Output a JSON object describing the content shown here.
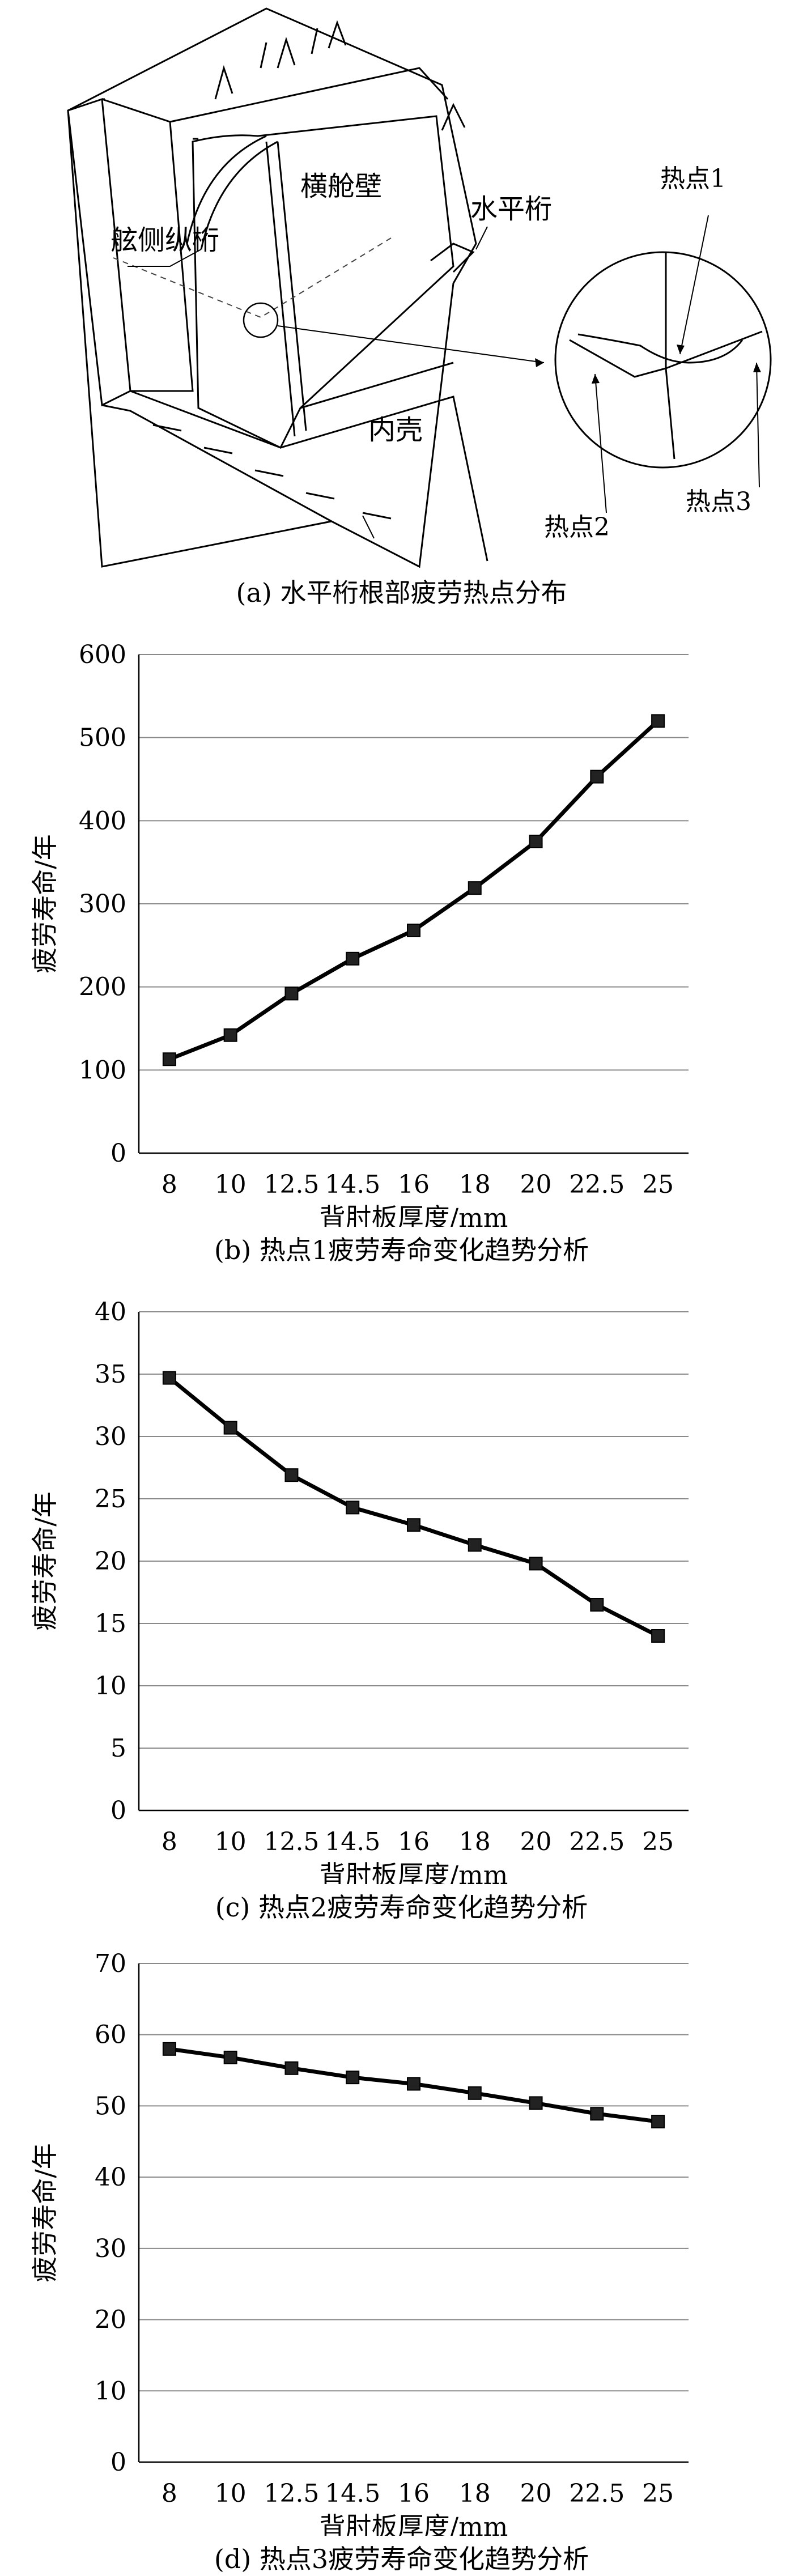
{
  "panel_a": {
    "caption": "(a) 水平桁根部疲劳热点分布",
    "labels": {
      "bulkhead": "横舱壁",
      "horizontal_girder": "水平桁",
      "side_longitudinal_girder": "舷侧纵桁",
      "inner_hull": "内壳",
      "hotspot1": "热点1",
      "hotspot2": "热点2",
      "hotspot3": "热点3"
    }
  },
  "chart_data": [
    {
      "type": "line",
      "caption": "(b) 热点1疲劳寿命变化趋势分析",
      "xlabel": "背肘板厚度/mm",
      "ylabel": "疲劳寿命/年",
      "categories": [
        "8",
        "10",
        "12.5",
        "14.5",
        "16",
        "18",
        "20",
        "22.5",
        "25"
      ],
      "values": [
        113,
        142,
        192,
        234,
        268,
        319,
        375,
        453,
        520
      ],
      "ylim": [
        0,
        600
      ],
      "yticks": [
        0,
        100,
        200,
        300,
        400,
        500,
        600
      ],
      "grid": true,
      "line_color": "#000000"
    },
    {
      "type": "line",
      "caption": "(c) 热点2疲劳寿命变化趋势分析",
      "xlabel": "背肘板厚度/mm",
      "ylabel": "疲劳寿命/年",
      "categories": [
        "8",
        "10",
        "12.5",
        "14.5",
        "16",
        "18",
        "20",
        "22.5",
        "25"
      ],
      "values": [
        34.7,
        30.7,
        26.9,
        24.3,
        22.9,
        21.3,
        19.8,
        16.5,
        14.0
      ],
      "ylim": [
        0,
        40
      ],
      "yticks": [
        0,
        5,
        10,
        15,
        20,
        25,
        30,
        35,
        40
      ],
      "grid": true,
      "line_color": "#000000"
    },
    {
      "type": "line",
      "caption": "(d) 热点3疲劳寿命变化趋势分析",
      "xlabel": "背肘板厚度/mm",
      "ylabel": "疲劳寿命/年",
      "categories": [
        "8",
        "10",
        "12.5",
        "14.5",
        "16",
        "18",
        "20",
        "22.5",
        "25"
      ],
      "values": [
        58.0,
        56.8,
        55.3,
        54.0,
        53.1,
        51.8,
        50.4,
        48.9,
        47.8
      ],
      "ylim": [
        0,
        70
      ],
      "yticks": [
        0,
        10,
        20,
        30,
        40,
        50,
        60,
        70
      ],
      "grid": true,
      "line_color": "#000000"
    }
  ]
}
